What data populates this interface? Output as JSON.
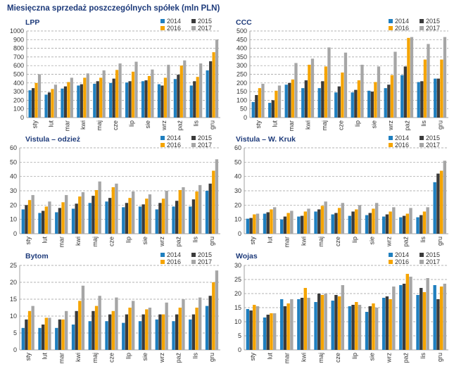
{
  "title": "Miesięczna sprzedaż poszczególnych spółek (mln PLN)",
  "colors": {
    "2014": "#1f7fbf",
    "2015": "#3b3b3b",
    "2016": "#f5a400",
    "2017": "#a6a6a6",
    "title": "#1d3a7a",
    "grid": "#9a9a9a"
  },
  "chart_data": [
    {
      "type": "bar",
      "title": "LPP",
      "legend": [
        "2014",
        "2015",
        "2016",
        "2017"
      ],
      "ylim": [
        0,
        1000
      ],
      "yticks": [
        0,
        100,
        200,
        300,
        400,
        500,
        600,
        700,
        800,
        900,
        1000
      ],
      "categories": [
        "sty",
        "lut",
        "mar",
        "kwi",
        "maj",
        "cze",
        "lip",
        "sie",
        "wrz",
        "paź",
        "lis",
        "gru"
      ],
      "series": [
        {
          "name": "2014",
          "values": [
            315,
            265,
            335,
            370,
            390,
            400,
            405,
            420,
            385,
            445,
            370,
            545
          ]
        },
        {
          "name": "2015",
          "values": [
            340,
            290,
            360,
            385,
            420,
            450,
            420,
            430,
            370,
            495,
            420,
            650
          ]
        },
        {
          "name": "2016",
          "values": [
            400,
            330,
            410,
            460,
            460,
            550,
            530,
            480,
            460,
            600,
            470,
            755
          ]
        },
        {
          "name": "2017",
          "values": [
            500,
            380,
            460,
            510,
            545,
            625,
            645,
            555,
            610,
            660,
            625,
            900
          ]
        }
      ]
    },
    {
      "type": "bar",
      "title": "CCC",
      "legend": [
        "2014",
        "2015",
        "2016",
        "2017"
      ],
      "ylim": [
        0,
        500
      ],
      "yticks": [
        0,
        50,
        100,
        150,
        200,
        250,
        300,
        350,
        400,
        450,
        500
      ],
      "categories": [
        "sty",
        "lut",
        "mar",
        "kwi",
        "maj",
        "cze",
        "lip",
        "sie",
        "wrz",
        "paź",
        "lis",
        "gru"
      ],
      "series": [
        {
          "name": "2014",
          "values": [
            90,
            85,
            190,
            170,
            170,
            145,
            145,
            155,
            170,
            245,
            205,
            225
          ]
        },
        {
          "name": "2015",
          "values": [
            130,
            100,
            200,
            215,
            210,
            180,
            160,
            150,
            190,
            295,
            210,
            225
          ]
        },
        {
          "name": "2016",
          "values": [
            170,
            155,
            220,
            305,
            295,
            260,
            215,
            205,
            245,
            460,
            335,
            335
          ]
        },
        {
          "name": "2017",
          "values": [
            195,
            185,
            315,
            340,
            405,
            375,
            305,
            295,
            380,
            465,
            425,
            465
          ]
        }
      ]
    },
    {
      "type": "bar",
      "title": "Vistula – odzież",
      "legend": [
        "2014",
        "2015",
        "2016",
        "2017"
      ],
      "ylim": [
        0,
        60
      ],
      "yticks": [
        0,
        10,
        20,
        30,
        40,
        50,
        60
      ],
      "categories": [
        "sty",
        "lut",
        "mar",
        "kwi",
        "maj",
        "cze",
        "lip",
        "sie",
        "wrz",
        "paź",
        "lis",
        "gru"
      ],
      "series": [
        {
          "name": "2014",
          "values": [
            17,
            14.5,
            15,
            17.5,
            21.5,
            22.5,
            18.5,
            19,
            17,
            19,
            19,
            30
          ]
        },
        {
          "name": "2015",
          "values": [
            20,
            16,
            18,
            21,
            26.5,
            25,
            21.5,
            20.5,
            21.5,
            23,
            24,
            35
          ]
        },
        {
          "name": "2016",
          "values": [
            23.5,
            19,
            22,
            26,
            30.5,
            32.5,
            25,
            24.5,
            24.5,
            30.5,
            29.5,
            44
          ]
        },
        {
          "name": "2017",
          "values": [
            27,
            22.5,
            27,
            29,
            36.5,
            35,
            29.5,
            27.5,
            30,
            32.5,
            34,
            52
          ]
        }
      ]
    },
    {
      "type": "bar",
      "title": "Vistula – W. Kruk",
      "legend": [
        "2014",
        "2015",
        "2016",
        "2017"
      ],
      "ylim": [
        0,
        60
      ],
      "yticks": [
        0,
        10,
        20,
        30,
        40,
        50,
        60
      ],
      "categories": [
        "sty",
        "lut",
        "mar",
        "kwi",
        "maj",
        "cze",
        "lip",
        "sie",
        "wrz",
        "paź",
        "lis",
        "gru"
      ],
      "series": [
        {
          "name": "2014",
          "values": [
            10.5,
            14,
            10,
            12,
            15.5,
            13.5,
            12.5,
            13,
            12,
            11.5,
            11.5,
            36
          ]
        },
        {
          "name": "2015",
          "values": [
            11,
            15,
            12,
            12.5,
            17,
            14.5,
            15.5,
            14.5,
            13.5,
            12.5,
            13,
            42
          ]
        },
        {
          "name": "2016",
          "values": [
            13.5,
            17,
            14.5,
            15.5,
            19.5,
            18,
            17,
            17.5,
            15.5,
            14,
            15.5,
            44
          ]
        },
        {
          "name": "2017",
          "values": [
            14,
            18.5,
            16,
            17.5,
            22.5,
            21.5,
            20,
            21.5,
            18.5,
            18,
            18.5,
            51
          ]
        }
      ]
    },
    {
      "type": "bar",
      "title": "Bytom",
      "legend": [
        "2014",
        "2015",
        "2016",
        "2017"
      ],
      "ylim": [
        0,
        25
      ],
      "yticks": [
        0,
        5,
        10,
        15,
        20,
        25
      ],
      "categories": [
        "sty",
        "lut",
        "mar",
        "kwi",
        "maj",
        "cze",
        "lip",
        "sie",
        "wrz",
        "paź",
        "lis",
        "gru"
      ],
      "series": [
        {
          "name": "2014",
          "values": [
            6.5,
            6.5,
            6.5,
            7.5,
            8.5,
            8.5,
            8,
            8.5,
            9,
            8.5,
            9,
            13
          ]
        },
        {
          "name": "2015",
          "values": [
            9,
            7.5,
            9,
            11.5,
            11.5,
            10.5,
            10.5,
            10.5,
            10.5,
            10.5,
            10.5,
            16
          ]
        },
        {
          "name": "2016",
          "values": [
            11.5,
            9.5,
            9,
            14.5,
            13,
            11.5,
            12.5,
            12,
            10.5,
            12.5,
            12.5,
            20
          ]
        },
        {
          "name": "2017",
          "values": [
            13,
            9.5,
            11.5,
            19,
            16,
            15.5,
            14.5,
            12.5,
            14,
            15,
            15.5,
            23.5
          ]
        }
      ]
    },
    {
      "type": "bar",
      "title": "Wojas",
      "legend": [
        "2014",
        "2015",
        "2016",
        "2017"
      ],
      "ylim": [
        0,
        30
      ],
      "yticks": [
        0,
        5,
        10,
        15,
        20,
        25,
        30
      ],
      "categories": [
        "sty",
        "lut",
        "mar",
        "kwi",
        "maj",
        "cze",
        "lip",
        "sie",
        "wrz",
        "paź",
        "lis",
        "gru"
      ],
      "series": [
        {
          "name": "2014",
          "values": [
            14.5,
            11.5,
            18,
            18,
            17,
            17.5,
            15.5,
            13.5,
            18.5,
            23,
            19.5,
            23
          ]
        },
        {
          "name": "2015",
          "values": [
            14,
            12.5,
            15.5,
            18.5,
            20,
            19.5,
            16,
            15.5,
            19,
            23.5,
            22,
            18
          ]
        },
        {
          "name": "2016",
          "values": [
            16,
            13,
            16.5,
            22,
            19.5,
            19,
            17,
            16.5,
            18,
            27,
            20.5,
            22.5
          ]
        },
        {
          "name": "2017",
          "values": [
            15.5,
            13,
            18,
            18.5,
            20,
            23,
            16,
            15,
            22.5,
            26,
            25.5,
            23.5
          ]
        }
      ]
    }
  ]
}
